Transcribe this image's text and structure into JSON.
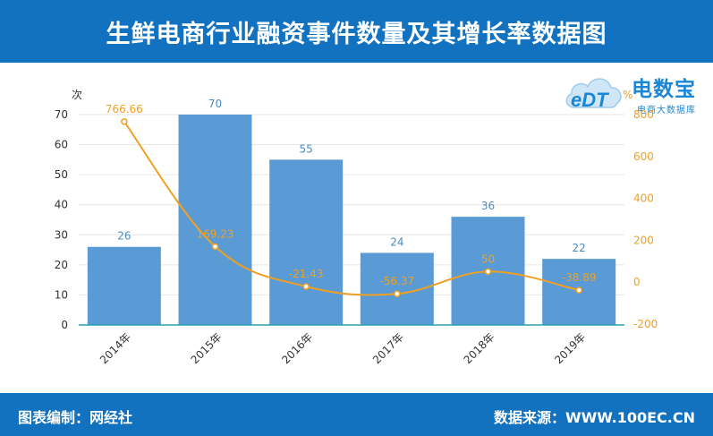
{
  "header": {
    "title": "生鲜电商行业融资事件数量及其增长率数据图"
  },
  "footer": {
    "left": "图表编制：网经社",
    "right": "数据来源：WWW.100EC.CN"
  },
  "logo": {
    "name": "电数宝",
    "badge": "eDT",
    "sub": "电商大数据库"
  },
  "chart_data": {
    "type": "bar",
    "categories": [
      "2014年",
      "2015年",
      "2016年",
      "2017年",
      "2018年",
      "2019年"
    ],
    "series": [
      {
        "values": [
          26,
          70,
          55,
          24,
          36,
          22
        ],
        "color": "#5b9bd5",
        "axis": "left",
        "kind": "bar"
      },
      {
        "values": [
          766.66,
          169.23,
          -21.43,
          -56.37,
          50,
          -38.89
        ],
        "color": "#f0a020",
        "axis": "right",
        "kind": "line"
      }
    ],
    "value_labels": [
      "26",
      "70",
      "55",
      "24",
      "36",
      "22"
    ],
    "rate_labels": [
      "766.66",
      "169.23",
      "-21.43",
      "-56.37",
      "50",
      "-38.89"
    ],
    "ylabel": "次",
    "y2label": "%",
    "ylim": [
      0,
      70
    ],
    "y2lim": [
      -200,
      800
    ],
    "yticks": [
      "0",
      "10",
      "20",
      "30",
      "40",
      "50",
      "60",
      "70"
    ],
    "y2ticks": [
      "-200",
      "0",
      "200",
      "400",
      "600",
      "800"
    ],
    "grid": true,
    "legend": "none"
  }
}
